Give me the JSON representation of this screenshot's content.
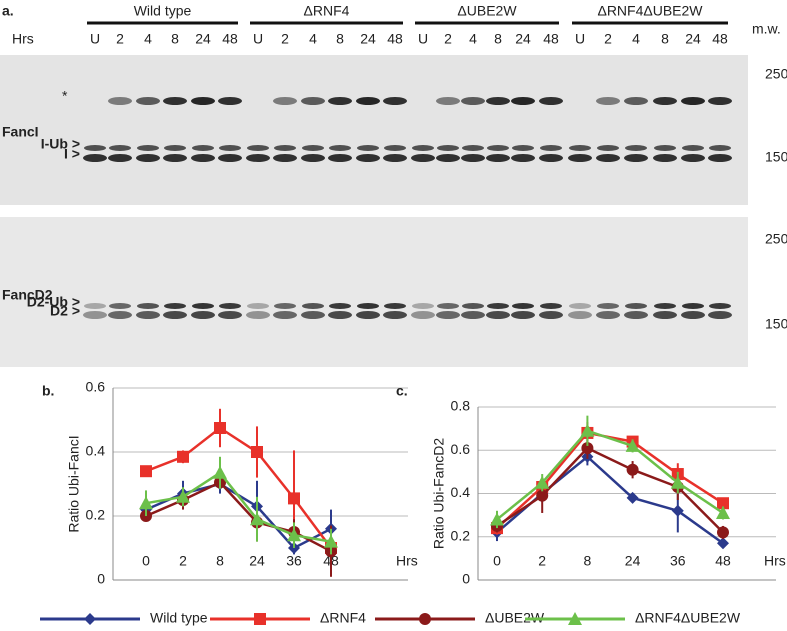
{
  "figure": {
    "blot": {
      "panel_label": "a.",
      "hrs_label": "Hrs",
      "mw_label": "m.w.",
      "groups": [
        {
          "name": "Wild type",
          "lanes": [
            "U",
            "2",
            "4",
            "8",
            "24",
            "48"
          ]
        },
        {
          "name": "ΔRNF4",
          "lanes": [
            "U",
            "2",
            "4",
            "8",
            "24",
            "48"
          ]
        },
        {
          "name": "ΔUBE2W",
          "lanes": [
            "U",
            "2",
            "4",
            "8",
            "24",
            "48"
          ]
        },
        {
          "name": "ΔRNF4ΔUBE2W",
          "lanes": [
            "U",
            "2",
            "4",
            "8",
            "24",
            "48"
          ]
        }
      ],
      "panels": [
        {
          "protein": "FancI",
          "star": "*",
          "bands": [
            "I-Ub >",
            "I >"
          ],
          "markers": [
            250,
            150
          ]
        },
        {
          "protein": "FancD2",
          "bands": [
            "D2-Ub >",
            "D2 >"
          ],
          "markers": [
            250,
            150
          ]
        }
      ]
    }
  },
  "chart_data": [
    {
      "type": "line",
      "panel_label": "b.",
      "y_label": "Ratio Ubi-FancI",
      "x_label": "Hrs",
      "categories": [
        "0",
        "2",
        "8",
        "24",
        "36",
        "48"
      ],
      "ylim": [
        0,
        0.6
      ],
      "yticks": [
        0,
        0.2,
        0.4,
        0.6
      ],
      "grid": true,
      "series": [
        {
          "name": "Wild type",
          "color": "#2b3a8c",
          "marker": "diamond",
          "values": [
            0.22,
            0.27,
            0.3,
            0.23,
            0.1,
            0.16
          ],
          "errors": [
            0.02,
            0.04,
            0.03,
            0.08,
            0.02,
            0.06
          ]
        },
        {
          "name": "ΔRNF4",
          "color": "#e8312a",
          "marker": "square",
          "values": [
            0.34,
            0.385,
            0.475,
            0.4,
            0.255,
            0.1
          ],
          "errors": [
            0.015,
            0.02,
            0.06,
            0.08,
            0.15,
            0.03
          ]
        },
        {
          "name": "ΔUBE2W",
          "color": "#8b1a1a",
          "marker": "circle",
          "values": [
            0.2,
            0.25,
            0.305,
            0.18,
            0.15,
            0.09
          ],
          "errors": [
            0.01,
            0.03,
            0.02,
            0.06,
            0.04,
            0.08
          ]
        },
        {
          "name": "ΔRNF4ΔUBE2W",
          "color": "#6cc04a",
          "marker": "triangle",
          "values": [
            0.24,
            0.26,
            0.335,
            0.19,
            0.14,
            0.12
          ],
          "errors": [
            0.04,
            0.03,
            0.05,
            0.07,
            0.04,
            0.04
          ]
        }
      ]
    },
    {
      "type": "line",
      "panel_label": "c.",
      "y_label": "Ratio Ubi-FancD2",
      "x_label": "Hrs",
      "categories": [
        "0",
        "2",
        "8",
        "24",
        "36",
        "48"
      ],
      "ylim": [
        0,
        0.8
      ],
      "yticks": [
        0,
        0.2,
        0.4,
        0.6,
        0.8
      ],
      "grid": true,
      "series": [
        {
          "color": "#2b3a8c",
          "marker": "diamond",
          "values": [
            0.22,
            0.4,
            0.57,
            0.38,
            0.32,
            0.17
          ],
          "errors": [
            0.04,
            0.04,
            0.04,
            0.02,
            0.1,
            0.02
          ]
        },
        {
          "color": "#e8312a",
          "marker": "square",
          "values": [
            0.24,
            0.43,
            0.68,
            0.64,
            0.49,
            0.355
          ],
          "errors": [
            0.03,
            0.03,
            0.05,
            0.01,
            0.05,
            0.02
          ]
        },
        {
          "color": "#8b1a1a",
          "marker": "circle",
          "values": [
            0.25,
            0.39,
            0.61,
            0.51,
            0.43,
            0.22
          ],
          "errors": [
            0.03,
            0.08,
            0.05,
            0.04,
            0.06,
            0.03
          ]
        },
        {
          "color": "#6cc04a",
          "marker": "triangle",
          "values": [
            0.28,
            0.45,
            0.69,
            0.62,
            0.45,
            0.31
          ],
          "errors": [
            0.04,
            0.04,
            0.07,
            0.03,
            0.05,
            0.03
          ]
        }
      ]
    }
  ]
}
